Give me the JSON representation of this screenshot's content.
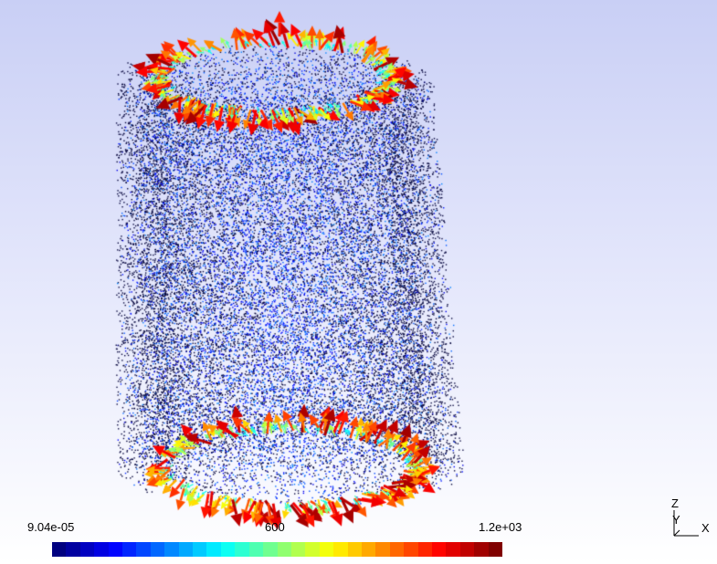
{
  "viewport": {
    "background_top": "#c9cff5",
    "background_bottom": "#ffffff",
    "visualization": "cylindrical point cloud with glyph arrows on the top and bottom rims"
  },
  "colorbar": {
    "min_label": "9.04e-05",
    "mid_label": "600",
    "max_label": "1.2e+03",
    "colormap": "jet",
    "segments": 32
  },
  "axes": {
    "z": "Z",
    "y": "Y",
    "x": "X"
  },
  "colors": {
    "point_blue": "#1a1aa6",
    "point_dark": "#0a0a40",
    "arrow_low": "#2fb0c8",
    "arrow_high": "#b00000"
  }
}
